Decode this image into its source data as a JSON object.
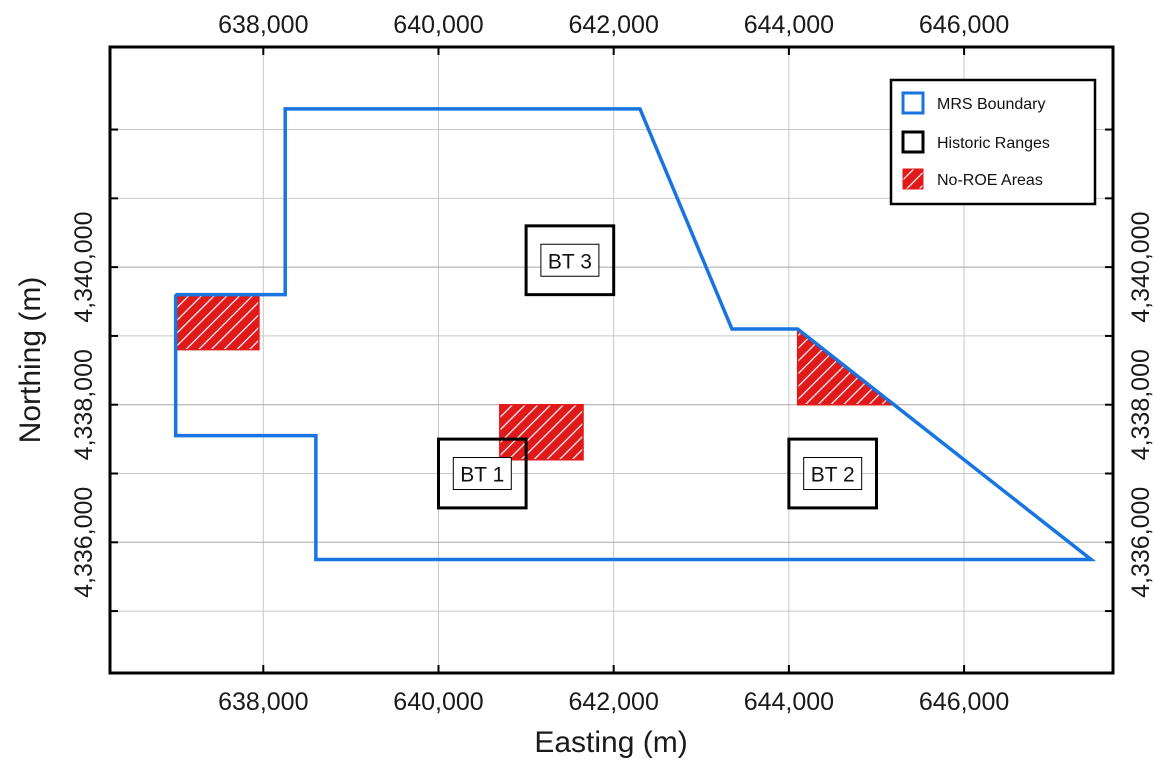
{
  "colors": {
    "boundary": "#1874e0",
    "range_outline": "#000000",
    "no_roe_fill": "#e01a1a",
    "grid": "#c8c8c8",
    "frame": "#000000"
  },
  "axes": {
    "xlabel": "Easting (m)",
    "ylabel": "Northing (m)",
    "xlim": [
      636250,
      647700
    ],
    "ylim": [
      4334100,
      4343200
    ],
    "x_ticks": [
      638000,
      640000,
      642000,
      644000,
      646000
    ],
    "x_tick_labels": [
      "638,000",
      "640,000",
      "642,000",
      "644,000",
      "646,000"
    ],
    "y_gridlines": [
      4335000,
      4336000,
      4337000,
      4338000,
      4339000,
      4340000,
      4341000,
      4342000
    ],
    "y_labeled": [
      4336000,
      4338000,
      4340000
    ],
    "y_tick_labels": [
      "4,336,000",
      "4,338,000",
      "4,340,000"
    ],
    "grid": true,
    "ticks_on_all_sides": true
  },
  "legend": {
    "placement": "top-right",
    "items": [
      {
        "label": "MRS Boundary",
        "icon": "blue-outline-square-icon"
      },
      {
        "label": "Historic Ranges",
        "icon": "black-outline-square-icon"
      },
      {
        "label": "No-ROE Areas",
        "icon": "red-hatched-square-icon"
      }
    ]
  },
  "features": {
    "mrs_boundary": [
      [
        637000,
        4339600
      ],
      [
        638250,
        4339600
      ],
      [
        638250,
        4342300
      ],
      [
        642300,
        4342300
      ],
      [
        643350,
        4339100
      ],
      [
        644100,
        4339100
      ],
      [
        647450,
        4335750
      ],
      [
        638600,
        4335750
      ],
      [
        638600,
        4337550
      ],
      [
        637000,
        4337550
      ],
      [
        637000,
        4339600
      ]
    ],
    "historic_ranges": [
      {
        "label": "BT 3",
        "x": [
          641000,
          642000
        ],
        "y": [
          4339600,
          4340600
        ]
      },
      {
        "label": "BT 1",
        "x": [
          640000,
          641000
        ],
        "y": [
          4336500,
          4337500
        ]
      },
      {
        "label": "BT 2",
        "x": [
          644000,
          645000
        ],
        "y": [
          4336500,
          4337500
        ]
      }
    ],
    "no_roe_areas": [
      [
        [
          637000,
          4339600
        ],
        [
          637950,
          4339600
        ],
        [
          637950,
          4338800
        ],
        [
          637000,
          4338800
        ]
      ],
      [
        [
          640700,
          4338000
        ],
        [
          641650,
          4338000
        ],
        [
          641650,
          4337200
        ],
        [
          640700,
          4337200
        ]
      ],
      [
        [
          644100,
          4339100
        ],
        [
          645200,
          4338000
        ],
        [
          644100,
          4338000
        ]
      ]
    ]
  }
}
